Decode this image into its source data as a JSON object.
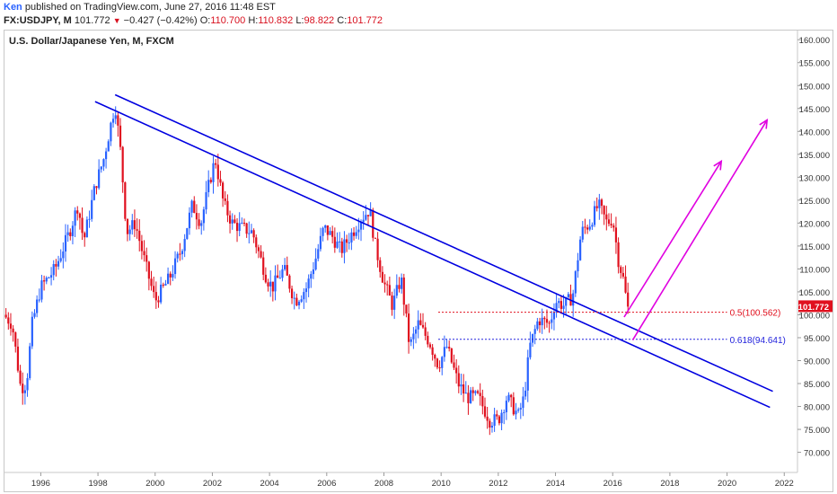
{
  "header": {
    "author": "Ken",
    "published": " published on TradingView.com, June 27, 2016 11:48 EST",
    "symbol": "FX:USDJPY, M",
    "last": "101.772",
    "down_arrow": "▼",
    "change": "−0.427 (−0.42%)",
    "o_label": "O:",
    "o_value": "110.700",
    "h_label": "H:",
    "h_value": "110.832",
    "l_label": "L:",
    "l_value": "98.822",
    "c_label": "C:",
    "c_value": "101.772"
  },
  "colors": {
    "up": "#2962ff",
    "down": "#e0101e",
    "channel": "#0000e0",
    "arrow": "#e000e0",
    "fib50": "#e0101e",
    "fib618": "#2222dd"
  },
  "chart_data": {
    "type": "candlestick",
    "title": "U.S. Dollar/Japanese Yen, M, FXCM",
    "ylim": [
      66,
      162
    ],
    "xlim": [
      1994.7,
      2022.4
    ],
    "x_ticks": [
      "1996",
      "1998",
      "2000",
      "2002",
      "2004",
      "2006",
      "2008",
      "2010",
      "2012",
      "2014",
      "2016",
      "2018",
      "2020",
      "2022"
    ],
    "y_ticks": [
      "160.000",
      "155.000",
      "150.000",
      "145.000",
      "140.000",
      "135.000",
      "130.000",
      "125.000",
      "120.000",
      "115.000",
      "110.000",
      "105.000",
      "100.000",
      "95.000",
      "90.000",
      "85.000",
      "80.000",
      "75.000",
      "70.000"
    ],
    "last_price_label": "101.772",
    "last_price": 101.772,
    "close_path": [
      [
        1994.7,
        100.0
      ],
      [
        1995.0,
        98.0
      ],
      [
        1995.3,
        84.0
      ],
      [
        1995.5,
        85.0
      ],
      [
        1995.7,
        98.0
      ],
      [
        1996.0,
        106.0
      ],
      [
        1996.5,
        110.0
      ],
      [
        1997.0,
        118.0
      ],
      [
        1997.3,
        124.0
      ],
      [
        1997.5,
        116.0
      ],
      [
        1997.9,
        128.0
      ],
      [
        1998.2,
        134.0
      ],
      [
        1998.6,
        146.0
      ],
      [
        1998.8,
        135.0
      ],
      [
        1999.0,
        118.0
      ],
      [
        1999.3,
        120.0
      ],
      [
        1999.7,
        110.0
      ],
      [
        2000.0,
        103.0
      ],
      [
        2000.5,
        108.0
      ],
      [
        2000.9,
        114.0
      ],
      [
        2001.3,
        124.0
      ],
      [
        2001.6,
        120.0
      ],
      [
        2001.9,
        129.0
      ],
      [
        2002.1,
        134.0
      ],
      [
        2002.4,
        124.0
      ],
      [
        2002.7,
        120.0
      ],
      [
        2003.0,
        119.0
      ],
      [
        2003.4,
        118.0
      ],
      [
        2003.9,
        108.0
      ],
      [
        2004.1,
        106.0
      ],
      [
        2004.5,
        110.0
      ],
      [
        2004.9,
        103.0
      ],
      [
        2005.3,
        106.0
      ],
      [
        2005.6,
        112.0
      ],
      [
        2005.9,
        119.0
      ],
      [
        2006.2,
        117.0
      ],
      [
        2006.5,
        114.0
      ],
      [
        2006.9,
        118.0
      ],
      [
        2007.2,
        121.0
      ],
      [
        2007.5,
        123.0
      ],
      [
        2007.7,
        115.0
      ],
      [
        2008.0,
        107.0
      ],
      [
        2008.3,
        102.0
      ],
      [
        2008.6,
        108.0
      ],
      [
        2008.9,
        93.0
      ],
      [
        2009.2,
        98.0
      ],
      [
        2009.6,
        94.0
      ],
      [
        2009.9,
        89.0
      ],
      [
        2010.2,
        93.0
      ],
      [
        2010.6,
        85.0
      ],
      [
        2010.9,
        82.0
      ],
      [
        2011.3,
        82.0
      ],
      [
        2011.7,
        77.0
      ],
      [
        2012.0,
        77.0
      ],
      [
        2012.3,
        82.0
      ],
      [
        2012.7,
        78.0
      ],
      [
        2012.9,
        82.0
      ],
      [
        2013.1,
        93.0
      ],
      [
        2013.4,
        99.0
      ],
      [
        2013.8,
        98.0
      ],
      [
        2014.0,
        103.0
      ],
      [
        2014.3,
        102.0
      ],
      [
        2014.6,
        104.0
      ],
      [
        2014.9,
        118.0
      ],
      [
        2015.2,
        120.0
      ],
      [
        2015.5,
        124.0
      ],
      [
        2015.8,
        120.0
      ],
      [
        2016.0,
        121.0
      ],
      [
        2016.2,
        112.0
      ],
      [
        2016.4,
        107.0
      ],
      [
        2016.5,
        101.772
      ]
    ],
    "channel_lines": [
      {
        "name": "upper",
        "x": [
          1998.6,
          2021.6
        ],
        "y": [
          148.0,
          83.3
        ]
      },
      {
        "name": "lower",
        "x": [
          1997.9,
          2021.5
        ],
        "y": [
          146.5,
          79.8
        ]
      }
    ],
    "fib_levels": [
      {
        "label": "0.5(100.562)",
        "value": 100.562,
        "x_start": 2009.9,
        "x_end": 2020.0
      },
      {
        "label": "0.618(94.641)",
        "value": 94.641,
        "x_start": 2009.9,
        "x_end": 2020.0
      }
    ],
    "arrows": [
      {
        "x": [
          2016.4,
          2019.8
        ],
        "y": [
          99.5,
          133.5
        ]
      },
      {
        "x": [
          2016.7,
          2021.4
        ],
        "y": [
          94.5,
          142.5
        ]
      }
    ]
  }
}
